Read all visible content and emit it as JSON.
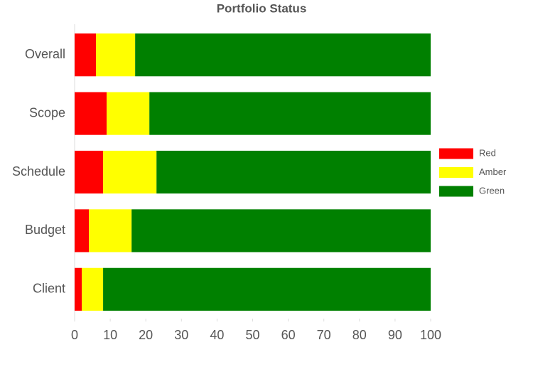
{
  "chart_data": {
    "type": "bar",
    "orientation": "horizontal",
    "stacked": true,
    "title": "Portfolio Status",
    "categories": [
      "Overall",
      "Scope",
      "Schedule",
      "Budget",
      "Client"
    ],
    "series": [
      {
        "name": "Red",
        "color": "#ff0000",
        "values": [
          6,
          9,
          8,
          4,
          2
        ]
      },
      {
        "name": "Amber",
        "color": "#ffff00",
        "values": [
          11,
          12,
          15,
          12,
          6
        ]
      },
      {
        "name": "Green",
        "color": "#008000",
        "values": [
          83,
          79,
          77,
          84,
          92
        ]
      }
    ],
    "xlim": [
      0,
      100
    ],
    "xticks": [
      0,
      10,
      20,
      30,
      40,
      50,
      60,
      70,
      80,
      90,
      100
    ],
    "legend": "right"
  }
}
